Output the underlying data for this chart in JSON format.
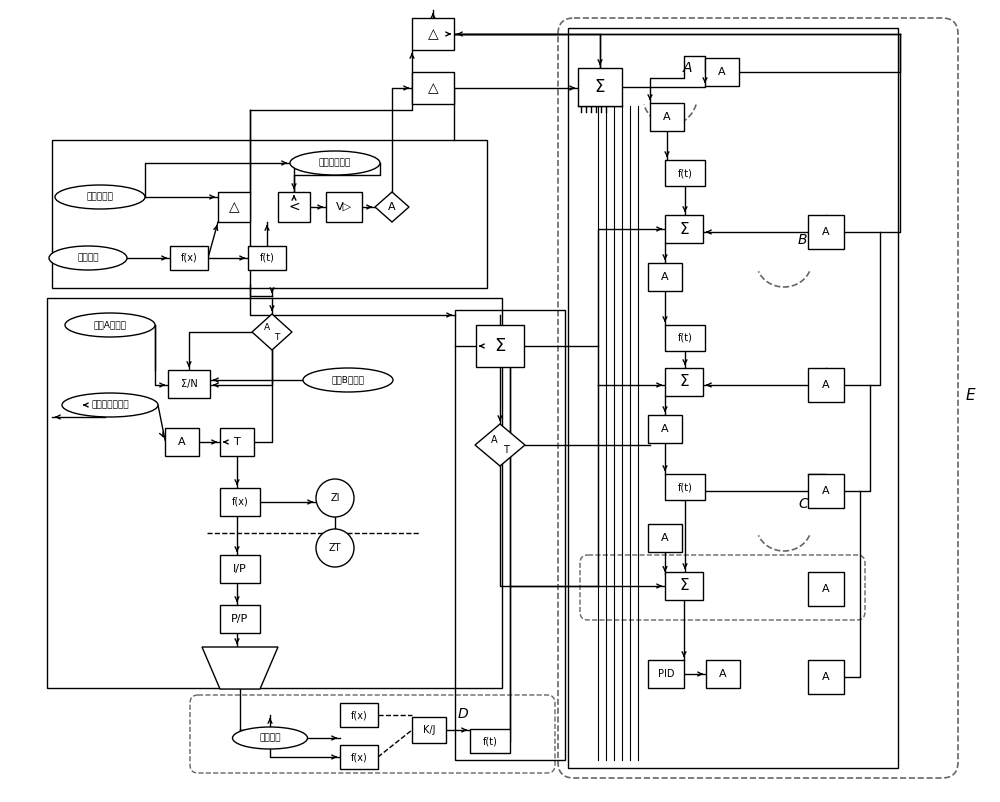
{
  "bg_color": "#ffffff",
  "lc": "#000000",
  "labels": {
    "main_temp": "主蒸汽温度",
    "steam_flow1": "蒸汽流量",
    "temp_sp": "主汽温设定値",
    "cmd_A": "未过A侧指令",
    "cmd_desup": "未过减温水指令",
    "cmd_B": "未过B侧指令",
    "steam_flow2": "蒸汽流量"
  }
}
